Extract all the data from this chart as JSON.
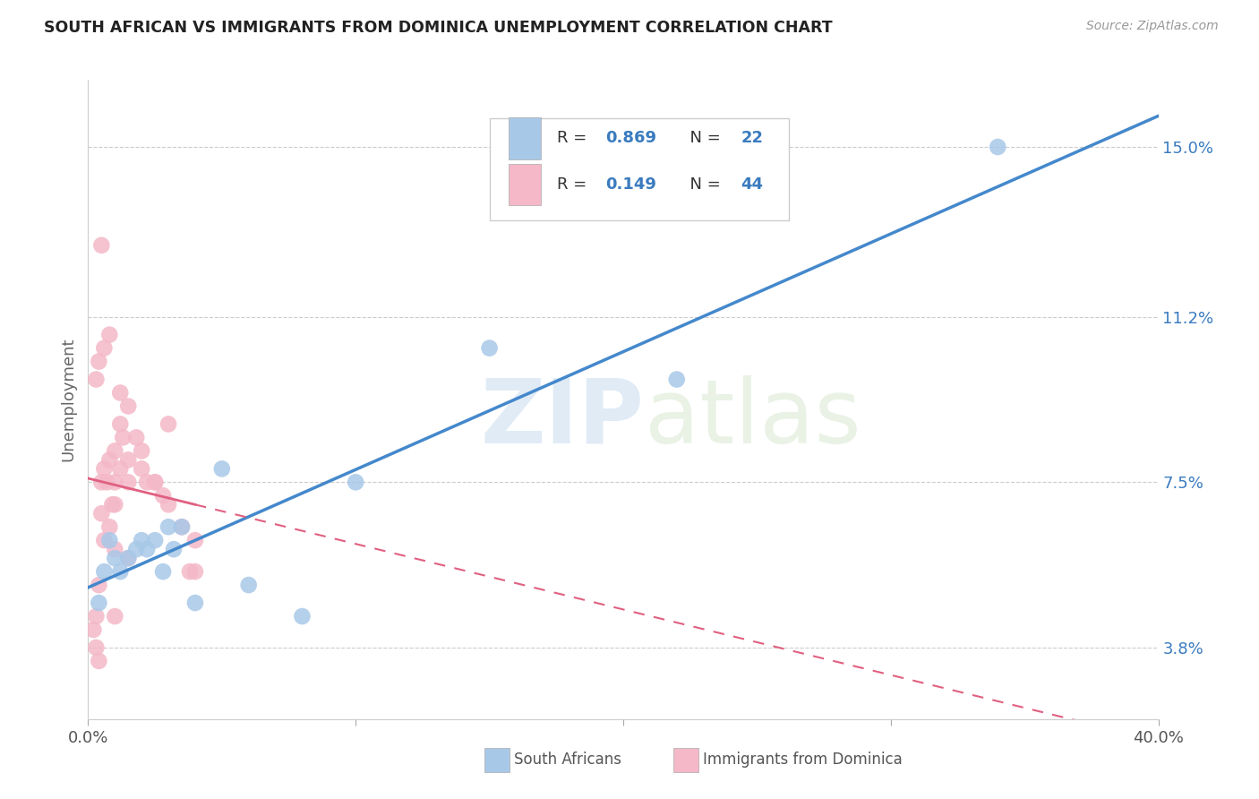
{
  "title": "SOUTH AFRICAN VS IMMIGRANTS FROM DOMINICA UNEMPLOYMENT CORRELATION CHART",
  "source": "Source: ZipAtlas.com",
  "ylabel": "Unemployment",
  "ytick_labels": [
    "3.8%",
    "7.5%",
    "11.2%",
    "15.0%"
  ],
  "ytick_values": [
    3.8,
    7.5,
    11.2,
    15.0
  ],
  "xlim": [
    0.0,
    40.0
  ],
  "ylim": [
    2.2,
    16.5
  ],
  "legend_label1": "South Africans",
  "legend_label2": "Immigrants from Dominica",
  "blue_color": "#a8c8e8",
  "pink_color": "#f4b8c8",
  "blue_line_color": "#4488cc",
  "pink_line_color": "#e06080",
  "blue_R": 0.869,
  "blue_N": 22,
  "pink_R": 0.149,
  "pink_N": 44,
  "blue_scatter_x": [
    0.4,
    0.6,
    0.8,
    1.0,
    1.2,
    1.5,
    1.8,
    2.0,
    2.2,
    2.5,
    2.8,
    3.0,
    3.2,
    3.5,
    4.0,
    5.0,
    6.0,
    8.0,
    10.0,
    15.0,
    22.0,
    34.0
  ],
  "blue_scatter_y": [
    4.8,
    5.5,
    6.2,
    5.8,
    5.5,
    5.8,
    6.0,
    6.2,
    6.0,
    6.2,
    5.5,
    6.5,
    6.0,
    6.5,
    4.8,
    7.8,
    5.2,
    4.5,
    7.5,
    10.5,
    9.8,
    15.0
  ],
  "pink_scatter_x": [
    0.2,
    0.3,
    0.3,
    0.4,
    0.4,
    0.5,
    0.5,
    0.6,
    0.6,
    0.7,
    0.8,
    0.8,
    0.9,
    1.0,
    1.0,
    1.0,
    1.2,
    1.2,
    1.3,
    1.5,
    1.5,
    1.5,
    1.8,
    2.0,
    2.0,
    2.2,
    2.5,
    2.8,
    3.0,
    3.0,
    3.5,
    3.8,
    4.0,
    4.0,
    0.3,
    0.4,
    0.6,
    0.8,
    1.2,
    2.5,
    0.5,
    1.0,
    1.0,
    1.5
  ],
  "pink_scatter_y": [
    4.2,
    3.8,
    4.5,
    3.5,
    5.2,
    6.8,
    7.5,
    6.2,
    7.8,
    7.5,
    6.5,
    8.0,
    7.0,
    7.5,
    8.2,
    7.0,
    7.8,
    8.8,
    8.5,
    8.0,
    9.2,
    7.5,
    8.5,
    7.8,
    8.2,
    7.5,
    7.5,
    7.2,
    7.0,
    8.8,
    6.5,
    5.5,
    5.5,
    6.2,
    9.8,
    10.2,
    10.5,
    10.8,
    9.5,
    7.5,
    12.8,
    6.0,
    4.5,
    5.8
  ]
}
